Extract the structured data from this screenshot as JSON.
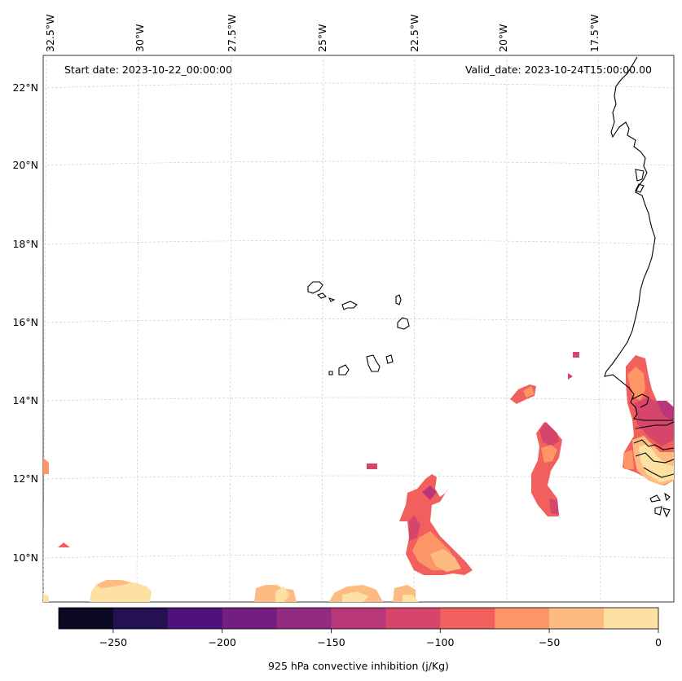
{
  "map": {
    "start_date": "Start date: 2023-10-22_00:00:00",
    "valid_date": "Valid_date: 2023-10-24T15:00:00.00",
    "lon_labels": [
      "32.5°W",
      "30°W",
      "27.5°W",
      "25°W",
      "22.5°W",
      "20°W",
      "17.5°W"
    ],
    "lat_labels": [
      "22°N",
      "20°N",
      "18°N",
      "16°N",
      "14°N",
      "12°N",
      "10°N"
    ]
  },
  "colorbar": {
    "label": "925 hPa convective inhibition (j/Kg)",
    "tick_labels": [
      "−250",
      "−200",
      "−150",
      "−100",
      "−50",
      "0"
    ],
    "colors": [
      "#0b0924",
      "#231151",
      "#4f127b",
      "#721f81",
      "#932b80",
      "#b73779",
      "#d6456c",
      "#f1605d",
      "#fd9567",
      "#febb81",
      "#fde1a2"
    ]
  }
}
